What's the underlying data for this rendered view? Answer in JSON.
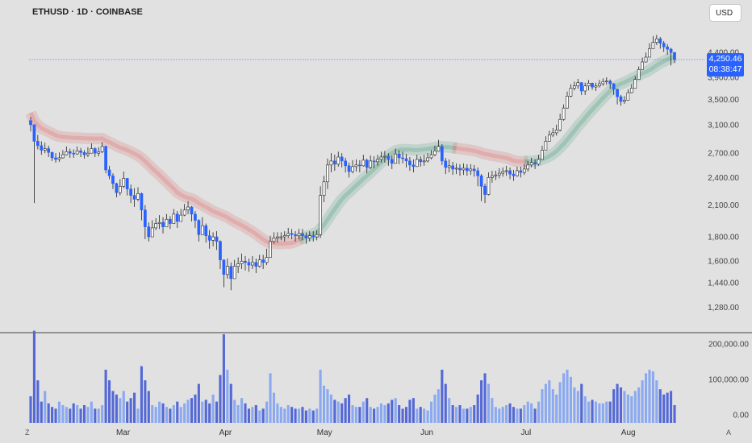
{
  "header": {
    "symbol": "ETHUSD · 1D · COINBASE",
    "currency": "USD"
  },
  "price_tag": {
    "price": "4,250.46",
    "countdown": "08:38:47"
  },
  "corners": {
    "left": "Z",
    "right": "A"
  },
  "colors": {
    "up": "#ffffff",
    "down": "#2962ff",
    "wick": "#222222",
    "ma_red": "#e06d6d",
    "ma_green": "#54a386",
    "vol_up": "#8aa9f0",
    "vol_down": "#5468d6"
  },
  "chart_data": {
    "type": "candlestick",
    "title": "ETHUSD · 1D · COINBASE",
    "x_labels": [
      "Mar",
      "Apr",
      "May",
      "Jun",
      "Jul",
      "Aug"
    ],
    "x_label_dates": [
      "2025-03-01",
      "2025-04-01",
      "2025-05-01",
      "2025-06-01",
      "2025-07-01",
      "2025-08-01"
    ],
    "price_axis_ticks": [
      "4,400.00",
      "3,900.00",
      "3,500.00",
      "3,100.00",
      "2,700.00",
      "2,400.00",
      "2,100.00",
      "1,800.00",
      "1,600.00",
      "1,440.00",
      "1,280.00"
    ],
    "volume_axis_ticks": [
      "200,000.00",
      "100,000.00",
      "0.00"
    ],
    "log_scale": true,
    "last_price": 4250.46,
    "start_date": "2025-02-01",
    "end_date": "2025-08-15",
    "close_series": [
      3100,
      2860,
      2800,
      2740,
      2760,
      2710,
      2640,
      2620,
      2640,
      2680,
      2720,
      2700,
      2690,
      2730,
      2710,
      2680,
      2700,
      2760,
      2700,
      2720,
      2790,
      2490,
      2420,
      2330,
      2230,
      2300,
      2390,
      2270,
      2200,
      2160,
      2220,
      2050,
      1890,
      1800,
      1880,
      1920,
      1930,
      1890,
      1960,
      1920,
      2010,
      1940,
      2000,
      2050,
      2080,
      2010,
      1950,
      1820,
      1900,
      1810,
      1770,
      1800,
      1760,
      1610,
      1500,
      1560,
      1470,
      1560,
      1580,
      1600,
      1590,
      1570,
      1590,
      1560,
      1610,
      1590,
      1630,
      1760,
      1790,
      1800,
      1800,
      1810,
      1830,
      1820,
      1810,
      1830,
      1810,
      1790,
      1810,
      1800,
      1820,
      2200,
      2350,
      2550,
      2600,
      2560,
      2650,
      2600,
      2540,
      2470,
      2530,
      2550,
      2540,
      2610,
      2520,
      2600,
      2590,
      2620,
      2650,
      2660,
      2620,
      2570,
      2690,
      2640,
      2630,
      2600,
      2550,
      2530,
      2620,
      2590,
      2600,
      2640,
      2680,
      2730,
      2790,
      2600,
      2520,
      2540,
      2500,
      2510,
      2490,
      2510,
      2480,
      2500,
      2480,
      2420,
      2300,
      2210,
      2400,
      2420,
      2430,
      2450,
      2470,
      2480,
      2440,
      2420,
      2480,
      2460,
      2500,
      2550,
      2580,
      2560,
      2620,
      2740,
      2860,
      2950,
      2980,
      3020,
      3180,
      3360,
      3560,
      3700,
      3740,
      3800,
      3650,
      3740,
      3790,
      3720,
      3740,
      3780,
      3820,
      3830,
      3780,
      3680,
      3550,
      3470,
      3490,
      3620,
      3700,
      3860,
      4050,
      4200,
      4300,
      4480,
      4620,
      4700,
      4600,
      4520,
      4470,
      4400,
      4250
    ],
    "high_series": [
      3220,
      3050,
      2950,
      2860,
      2840,
      2800,
      2720,
      2700,
      2710,
      2740,
      2790,
      2760,
      2750,
      2790,
      2770,
      2740,
      2780,
      2830,
      2780,
      2780,
      2850,
      2800,
      2540,
      2450,
      2340,
      2380,
      2470,
      2390,
      2320,
      2280,
      2290,
      2230,
      2100,
      1930,
      1950,
      1970,
      2000,
      1980,
      2010,
      1990,
      2060,
      2040,
      2060,
      2110,
      2140,
      2090,
      2040,
      1960,
      1980,
      1920,
      1860,
      1840,
      1850,
      1770,
      1610,
      1620,
      1590,
      1610,
      1630,
      1660,
      1640,
      1620,
      1640,
      1620,
      1650,
      1650,
      1700,
      1810,
      1840,
      1840,
      1840,
      1850,
      1880,
      1870,
      1850,
      1870,
      1870,
      1840,
      1850,
      1850,
      1860,
      2300,
      2420,
      2630,
      2700,
      2680,
      2720,
      2700,
      2640,
      2580,
      2610,
      2620,
      2610,
      2680,
      2630,
      2670,
      2660,
      2680,
      2720,
      2730,
      2700,
      2670,
      2760,
      2740,
      2720,
      2690,
      2650,
      2620,
      2680,
      2660,
      2680,
      2700,
      2740,
      2800,
      2880,
      2820,
      2640,
      2620,
      2590,
      2570,
      2560,
      2570,
      2560,
      2560,
      2550,
      2520,
      2440,
      2330,
      2460,
      2480,
      2480,
      2510,
      2520,
      2540,
      2520,
      2490,
      2530,
      2530,
      2560,
      2600,
      2640,
      2620,
      2680,
      2800,
      2930,
      3010,
      3050,
      3100,
      3270,
      3420,
      3640,
      3770,
      3820,
      3870,
      3810,
      3800,
      3850,
      3800,
      3800,
      3850,
      3880,
      3900,
      3860,
      3790,
      3690,
      3580,
      3560,
      3680,
      3770,
      3920,
      4110,
      4290,
      4400,
      4600,
      4760,
      4790,
      4740,
      4650,
      4580,
      4500,
      4330
    ],
    "low_series": [
      3000,
      2120,
      2750,
      2680,
      2700,
      2650,
      2600,
      2580,
      2590,
      2630,
      2670,
      2640,
      2640,
      2680,
      2650,
      2630,
      2650,
      2700,
      2650,
      2660,
      2700,
      2450,
      2380,
      2270,
      2180,
      2200,
      2280,
      2200,
      2120,
      2080,
      2140,
      1950,
      1780,
      1760,
      1800,
      1860,
      1870,
      1830,
      1890,
      1870,
      1930,
      1880,
      1940,
      1990,
      2010,
      1940,
      1880,
      1760,
      1820,
      1750,
      1700,
      1720,
      1690,
      1540,
      1410,
      1470,
      1390,
      1470,
      1510,
      1540,
      1530,
      1520,
      1540,
      1510,
      1550,
      1540,
      1570,
      1640,
      1740,
      1750,
      1770,
      1760,
      1790,
      1780,
      1760,
      1780,
      1770,
      1740,
      1760,
      1760,
      1770,
      1790,
      2130,
      2270,
      2460,
      2480,
      2530,
      2520,
      2460,
      2400,
      2450,
      2470,
      2460,
      2530,
      2450,
      2500,
      2510,
      2540,
      2580,
      2580,
      2540,
      2500,
      2610,
      2560,
      2570,
      2520,
      2480,
      2460,
      2540,
      2530,
      2540,
      2580,
      2620,
      2660,
      2730,
      2550,
      2440,
      2460,
      2430,
      2440,
      2420,
      2430,
      2420,
      2430,
      2410,
      2300,
      2140,
      2120,
      2200,
      2340,
      2370,
      2390,
      2410,
      2420,
      2380,
      2360,
      2410,
      2400,
      2430,
      2470,
      2520,
      2500,
      2540,
      2640,
      2740,
      2890,
      2920,
      2940,
      3000,
      3160,
      3350,
      3540,
      3660,
      3690,
      3580,
      3580,
      3660,
      3670,
      3650,
      3710,
      3740,
      3760,
      3690,
      3580,
      3420,
      3400,
      3430,
      3500,
      3610,
      3760,
      3910,
      4080,
      4190,
      4350,
      4480,
      4560,
      4480,
      4410,
      4350,
      4130,
      4180
    ],
    "volume_series": [
      75000,
      260000,
      120000,
      60000,
      90000,
      55000,
      45000,
      40000,
      60000,
      50000,
      45000,
      40000,
      55000,
      50000,
      40000,
      50000,
      45000,
      60000,
      40000,
      40000,
      50000,
      150000,
      120000,
      90000,
      80000,
      70000,
      90000,
      60000,
      70000,
      85000,
      40000,
      160000,
      120000,
      90000,
      50000,
      45000,
      60000,
      55000,
      45000,
      40000,
      50000,
      60000,
      45000,
      55000,
      65000,
      70000,
      80000,
      110000,
      60000,
      65000,
      55000,
      80000,
      60000,
      135000,
      250000,
      150000,
      110000,
      65000,
      50000,
      70000,
      55000,
      40000,
      45000,
      50000,
      35000,
      40000,
      60000,
      140000,
      85000,
      55000,
      45000,
      40000,
      50000,
      45000,
      40000,
      40000,
      45000,
      35000,
      40000,
      35000,
      40000,
      150000,
      105000,
      95000,
      80000,
      65000,
      60000,
      55000,
      70000,
      80000,
      50000,
      45000,
      45000,
      60000,
      70000,
      45000,
      40000,
      45000,
      55000,
      50000,
      55000,
      65000,
      70000,
      50000,
      40000,
      45000,
      65000,
      70000,
      40000,
      45000,
      40000,
      35000,
      60000,
      80000,
      95000,
      150000,
      110000,
      70000,
      50000,
      45000,
      50000,
      40000,
      40000,
      45000,
      50000,
      80000,
      120000,
      140000,
      110000,
      70000,
      45000,
      40000,
      45000,
      50000,
      55000,
      45000,
      40000,
      40000,
      50000,
      60000,
      55000,
      40000,
      60000,
      95000,
      110000,
      120000,
      95000,
      80000,
      115000,
      140000,
      150000,
      130000,
      100000,
      90000,
      110000,
      75000,
      60000,
      65000,
      60000,
      55000,
      55000,
      60000,
      60000,
      95000,
      110000,
      100000,
      90000,
      80000,
      75000,
      90000,
      100000,
      120000,
      140000,
      150000,
      145000,
      120000,
      95000,
      80000,
      85000,
      90000,
      50000
    ],
    "moving_average": {
      "red_segment_end_date": "2025-04-23",
      "red_segment_2_start_date": "2025-06-10",
      "red_segment_2_end_date": "2025-06-30"
    }
  }
}
